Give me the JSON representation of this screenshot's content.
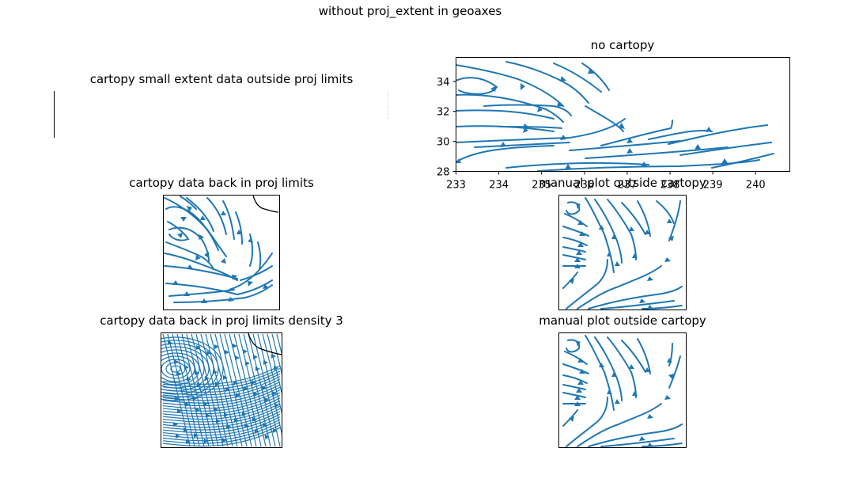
{
  "figure": {
    "suptitle": "without proj_extent in geoaxes"
  },
  "panels": [
    {
      "id": "p1",
      "title": "cartopy small extent data outside proj limits"
    },
    {
      "id": "p2",
      "title": "no cartopy"
    },
    {
      "id": "p3",
      "title": "cartopy data back in proj limits"
    },
    {
      "id": "p4",
      "title": "manual plot outside cartopy"
    },
    {
      "id": "p5",
      "title": "cartopy data back in proj limits density 3"
    },
    {
      "id": "p6",
      "title": "manual plot outside cartopy"
    }
  ],
  "chart_data": [
    {
      "type": "streamplot",
      "title": "cartopy small extent data outside proj limits",
      "note_visible": "empty axes",
      "series": []
    },
    {
      "type": "streamplot",
      "title": "no cartopy",
      "xlim": [
        233,
        240.8
      ],
      "ylim": [
        28,
        35.6
      ],
      "x_ticks": [
        233,
        234,
        235,
        236,
        237,
        238,
        239,
        240
      ],
      "y_ticks": [
        28,
        30,
        32,
        34
      ],
      "color": "#1f77b4"
    },
    {
      "type": "streamplot",
      "title": "cartopy data back in proj limits",
      "color": "#1f77b4",
      "coastline": true
    },
    {
      "type": "streamplot",
      "title": "manual plot outside cartopy",
      "color": "#1f77b4"
    },
    {
      "type": "streamplot",
      "title": "cartopy data back in proj limits density 3",
      "density": 3,
      "color": "#1f77b4",
      "coastline": true
    },
    {
      "type": "streamplot",
      "title": "manual plot outside cartopy",
      "color": "#1f77b4"
    }
  ]
}
